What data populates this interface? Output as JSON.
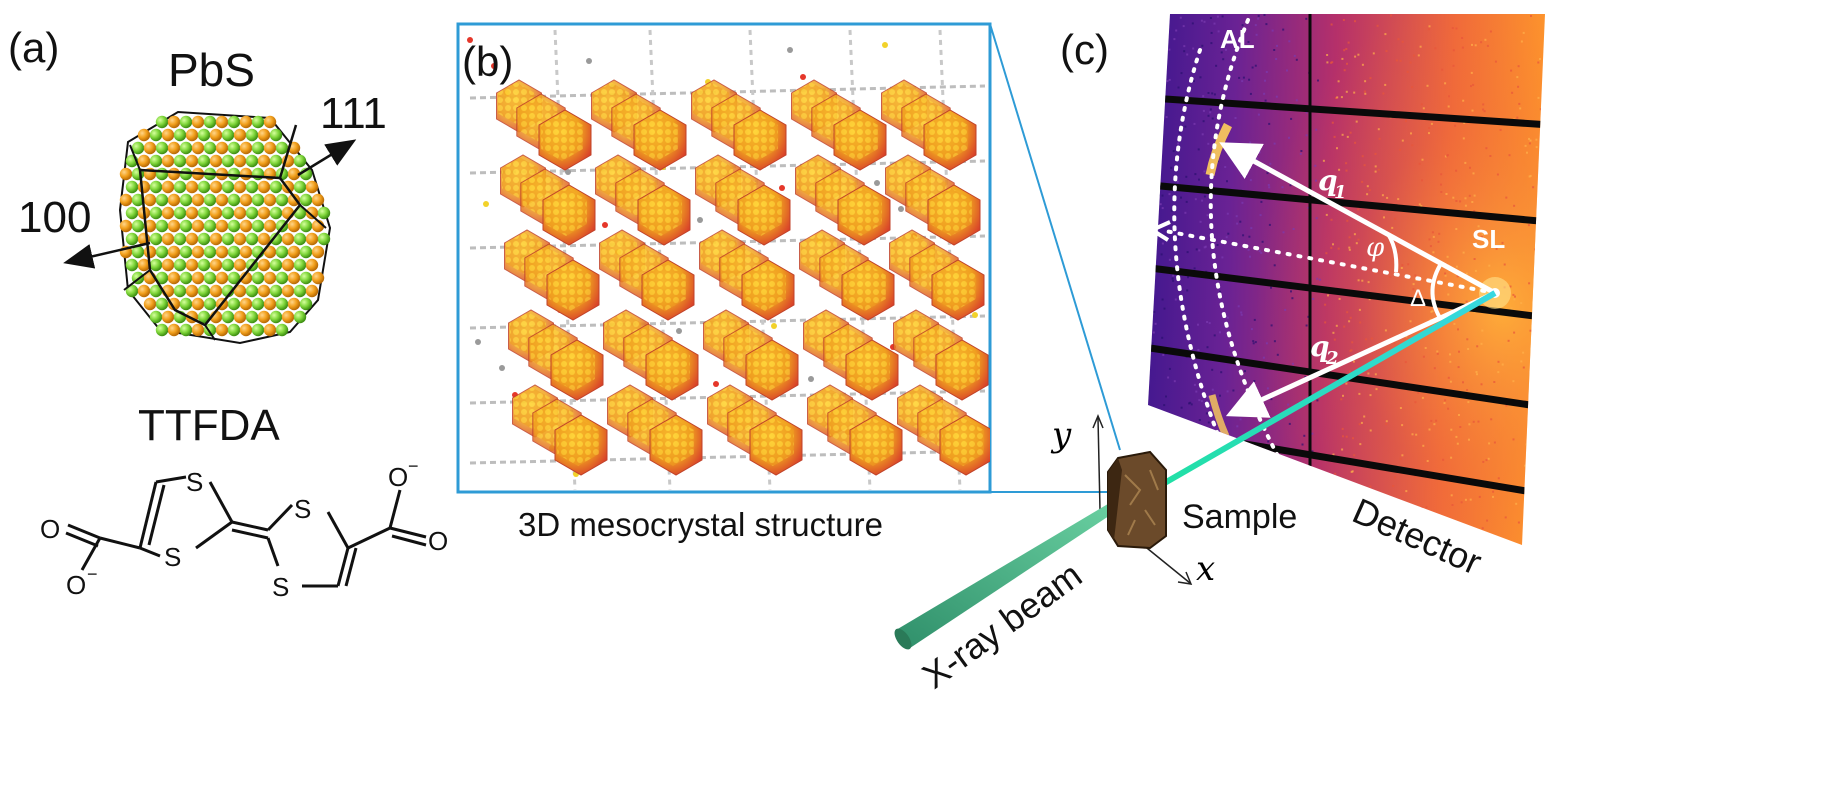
{
  "panel_a": {
    "tag": "(a)",
    "crystal_name": "PbS",
    "facet_100": "100",
    "facet_111": "111",
    "ligand_name": "TTFDA",
    "atom_s": "S",
    "atom_o": "O",
    "charge": "−"
  },
  "panel_b": {
    "tag": "(b)",
    "caption": "3D mesocrystal structure"
  },
  "panel_c": {
    "tag": "(c)",
    "al_label": "AL",
    "sl_label": "SL",
    "q1_label": "q",
    "q1_sub": "1",
    "q2_label": "q",
    "q2_sub": "2",
    "phi_label": "φ",
    "delta_label": "Δ",
    "axis_y": "y",
    "axis_x": "x",
    "sample_label": "Sample",
    "detector_label": "Detector",
    "beam_label": "X-ray beam"
  },
  "colors": {
    "frame_blue": "#2e9bd6",
    "pb_orange": "#f2a01c",
    "s_green": "#7fd63a",
    "beam_green": "#3aa37a",
    "detector_purple": "#4a1c9a",
    "detector_hot": "#f08a2c"
  }
}
